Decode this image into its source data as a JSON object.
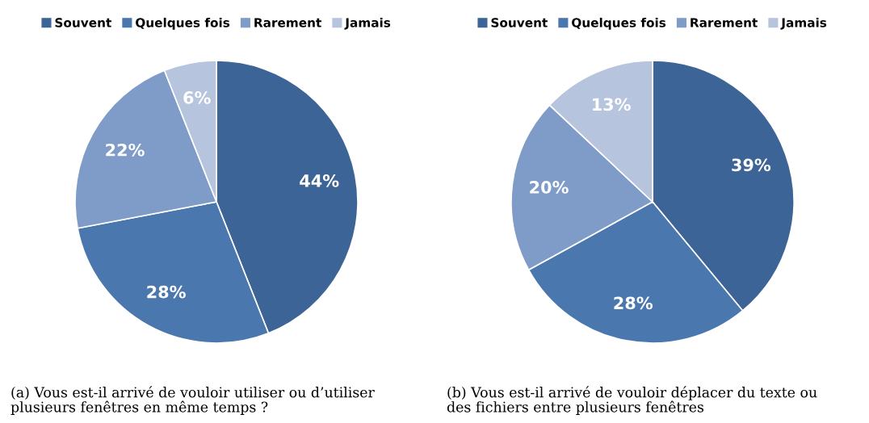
{
  "chart_data": [
    {
      "type": "pie",
      "categories": [
        "Souvent",
        "Quelques fois",
        "Rarement",
        "Jamais"
      ],
      "values": [
        44,
        28,
        22,
        6
      ],
      "colors": [
        "#3d6496",
        "#4a77ae",
        "#7f9cc8",
        "#b6c4de"
      ],
      "value_labels": [
        "44%",
        "28%",
        "22%",
        "6%"
      ],
      "legend": "top",
      "annotations": [
        "(a) Vous est-il arrivé de vouloir utiliser ou d’utiliser\nplusieurs fenêtres en même temps ?"
      ]
    },
    {
      "type": "pie",
      "categories": [
        "Souvent",
        "Quelques fois",
        "Rarement",
        "Jamais"
      ],
      "values": [
        39,
        28,
        20,
        13
      ],
      "colors": [
        "#3d6496",
        "#4a77ae",
        "#7f9cc8",
        "#b6c4de"
      ],
      "value_labels": [
        "39%",
        "28%",
        "20%",
        "13%"
      ],
      "legend": "top",
      "annotations": [
        "(b) Vous est-il arrivé de vouloir déplacer du texte ou\ndes fichiers entre plusieurs fenêtres"
      ]
    }
  ]
}
